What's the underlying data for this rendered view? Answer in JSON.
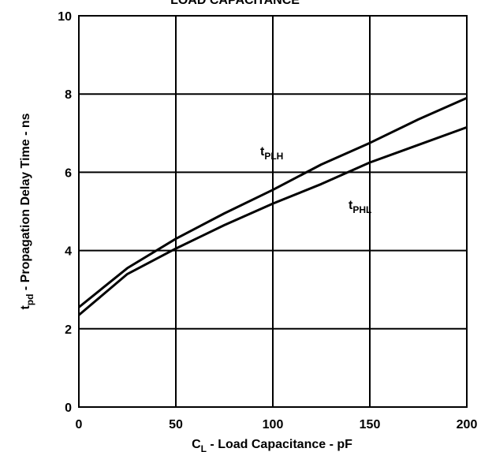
{
  "chart_data": {
    "type": "line",
    "title": "LOAD CAPACITANCE",
    "xlabel": {
      "main": "C",
      "sub": "L",
      "rest": " - Load Capacitance - pF"
    },
    "ylabel": {
      "main": "t",
      "sub": "pd",
      "rest": " - Propagation Delay Time - ns"
    },
    "xlim": [
      0,
      200
    ],
    "ylim": [
      0,
      10
    ],
    "xticks": [
      "0",
      "50",
      "100",
      "150",
      "200"
    ],
    "yticks": [
      "0",
      "2",
      "4",
      "6",
      "8",
      "10"
    ],
    "grid": true,
    "series": [
      {
        "label_main": "t",
        "label_sub": "PLH",
        "x": [
          0,
          25,
          50,
          75,
          100,
          125,
          150,
          175,
          200
        ],
        "y": [
          2.55,
          3.55,
          4.3,
          4.95,
          5.55,
          6.2,
          6.75,
          7.35,
          7.9
        ]
      },
      {
        "label_main": "t",
        "label_sub": "PHL",
        "x": [
          0,
          25,
          50,
          75,
          100,
          125,
          150,
          175,
          200
        ],
        "y": [
          2.35,
          3.4,
          4.05,
          4.65,
          5.2,
          5.7,
          6.25,
          6.7,
          7.15
        ]
      }
    ],
    "colors": {
      "line": "#000000",
      "grid": "#000000",
      "background": "#ffffff"
    }
  }
}
